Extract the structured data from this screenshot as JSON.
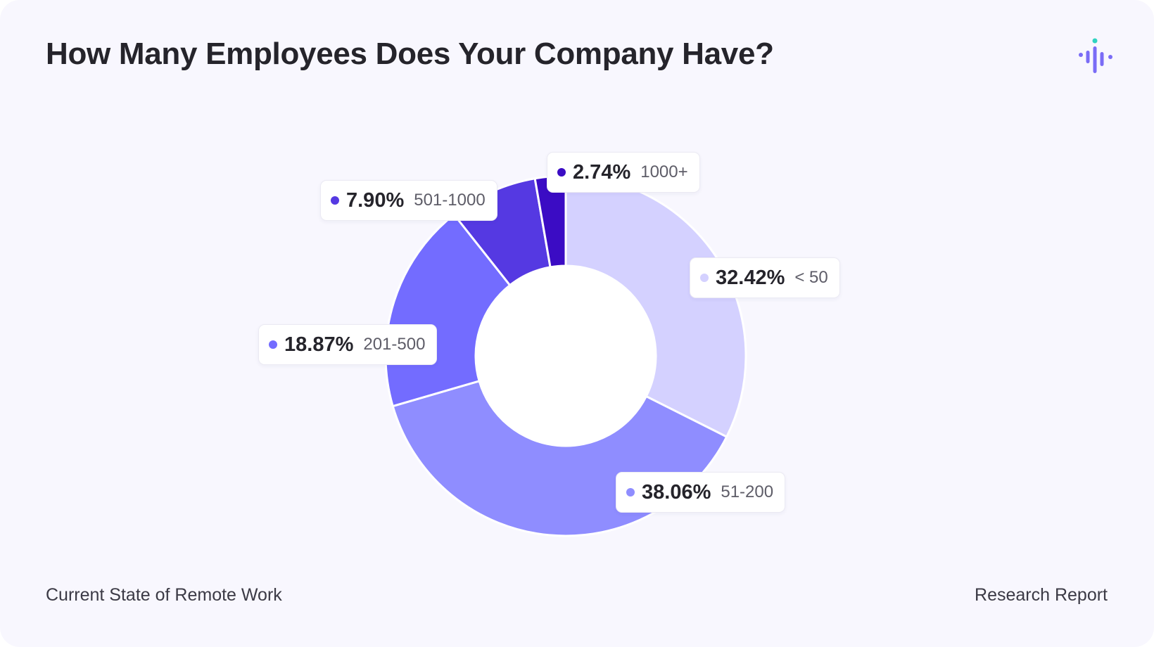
{
  "header": {
    "title": "How Many Employees Does Your Company Have?",
    "logo_icon": "audio-bars-logo-icon"
  },
  "footer": {
    "left": "Current State of Remote Work",
    "right": "Research Report"
  },
  "chart_data": {
    "type": "pie",
    "title": "How Many Employees Does Your Company Have?",
    "donut": true,
    "categories": [
      "< 50",
      "51-200",
      "201-500",
      "501-1000",
      "1000+"
    ],
    "values": [
      32.42,
      38.06,
      18.87,
      7.9,
      2.74
    ],
    "labels": [
      "32.42%",
      "38.06%",
      "18.87%",
      "7.90%",
      "2.74%"
    ],
    "colors": [
      "#d4d1ff",
      "#8f8dff",
      "#736cff",
      "#5539e2",
      "#3b0cc4"
    ],
    "legend": "callouts"
  }
}
